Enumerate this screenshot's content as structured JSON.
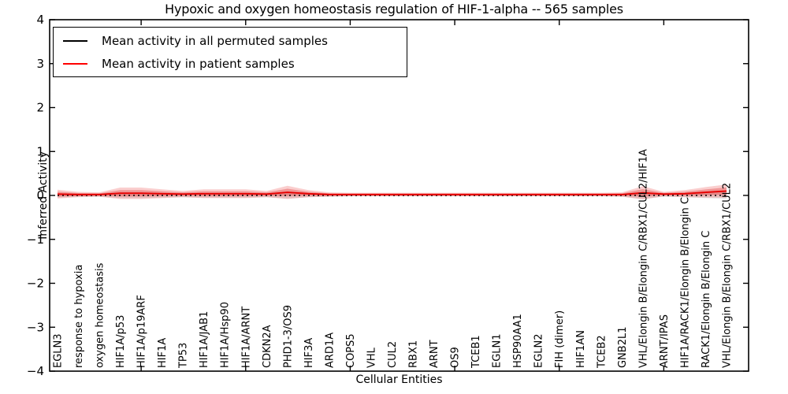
{
  "figure": {
    "title": "Hypoxic and oxygen homeostasis regulation of HIF-1-alpha -- 565 samples",
    "xlabel": "Cellular Entities",
    "ylabel": "Inferred Activity"
  },
  "legend": {
    "entries": [
      {
        "label": "Mean activity in all permuted samples",
        "color": "#000000"
      },
      {
        "label": "Mean activity in patient samples",
        "color": "#ff0000"
      }
    ]
  },
  "colors": {
    "patient_line": "#e60000",
    "patient_band": "rgba(230,30,30,0.22)",
    "patient_band_core": "rgba(220,20,20,0.30)",
    "permuted_line": "#000000",
    "permuted_band": "rgba(60,60,60,0.12)",
    "frame": "#000000"
  },
  "chart_data": {
    "type": "line",
    "title": "Hypoxic and oxygen homeostasis regulation of HIF-1-alpha -- 565 samples",
    "xlabel": "Cellular Entities",
    "ylabel": "Inferred Activity",
    "ylim": [
      -4,
      4
    ],
    "yticks": [
      -4,
      -3,
      -2,
      -1,
      0,
      1,
      2,
      3,
      4
    ],
    "ytick_labels": [
      "−4",
      "−3",
      "−2",
      "−1",
      "0",
      "1",
      "2",
      "3",
      "4"
    ],
    "xticks_numeric": [
      5,
      10,
      15,
      20,
      25,
      30
    ],
    "grid": false,
    "legend_position": "upper left",
    "categories": [
      "EGLN3",
      "response to hypoxia",
      "oxygen homeostasis",
      "HIF1A/p53",
      "HIF1A/p19ARF",
      "HIF1A",
      "TP53",
      "HIF1A/JAB1",
      "HIF1A/Hsp90",
      "HIF1A/ARNT",
      "CDKN2A",
      "PHD1-3/OS9",
      "HIF3A",
      "ARD1A",
      "COPS5",
      "VHL",
      "CUL2",
      "RBX1",
      "ARNT",
      "OS9",
      "TCEB1",
      "EGLN1",
      "HSP90AA1",
      "EGLN2",
      "FIH (dimer)",
      "HIF1AN",
      "TCEB2",
      "GNB2L1",
      "VHL/Elongin B/Elongin C/RBX1/CUL2/HIF1A",
      "ARNT/IPAS",
      "HIF1A/RACK1/Elongin B/Elongin C",
      "RACK1/Elongin B/Elongin C",
      "VHL/Elongin B/Elongin C/RBX1/CUL2"
    ],
    "series": [
      {
        "name": "Mean activity in all permuted samples",
        "color": "#000000",
        "style": "dotted",
        "values": [
          0,
          0,
          0,
          0,
          0,
          0,
          0,
          0,
          0,
          0,
          0,
          0,
          0,
          0,
          0,
          0,
          0,
          0,
          0,
          0,
          0,
          0,
          0,
          0,
          0,
          0,
          0,
          0,
          0,
          0,
          0,
          0,
          0
        ],
        "band_halfwidth": [
          0.05,
          0.03,
          0.03,
          0.06,
          0.06,
          0.05,
          0.04,
          0.05,
          0.05,
          0.05,
          0.04,
          0.07,
          0.04,
          0.03,
          0.02,
          0.02,
          0.02,
          0.02,
          0.02,
          0.02,
          0.02,
          0.02,
          0.02,
          0.02,
          0.02,
          0.02,
          0.02,
          0.03,
          0.08,
          0.03,
          0.04,
          0.06,
          0.08
        ]
      },
      {
        "name": "Mean activity in patient samples",
        "color": "#ff0000",
        "style": "solid",
        "values": [
          0.03,
          0.02,
          0.02,
          0.05,
          0.05,
          0.04,
          0.03,
          0.04,
          0.04,
          0.04,
          0.03,
          0.07,
          0.04,
          0.02,
          0.02,
          0.02,
          0.02,
          0.02,
          0.02,
          0.02,
          0.02,
          0.02,
          0.02,
          0.02,
          0.02,
          0.02,
          0.02,
          0.02,
          0.06,
          0.03,
          0.04,
          0.07,
          0.1
        ],
        "band_halfwidth": [
          0.1,
          0.06,
          0.05,
          0.13,
          0.13,
          0.1,
          0.07,
          0.1,
          0.1,
          0.1,
          0.07,
          0.15,
          0.08,
          0.05,
          0.04,
          0.04,
          0.04,
          0.04,
          0.04,
          0.04,
          0.04,
          0.04,
          0.04,
          0.04,
          0.04,
          0.04,
          0.04,
          0.05,
          0.15,
          0.05,
          0.08,
          0.12,
          0.15
        ]
      }
    ]
  }
}
